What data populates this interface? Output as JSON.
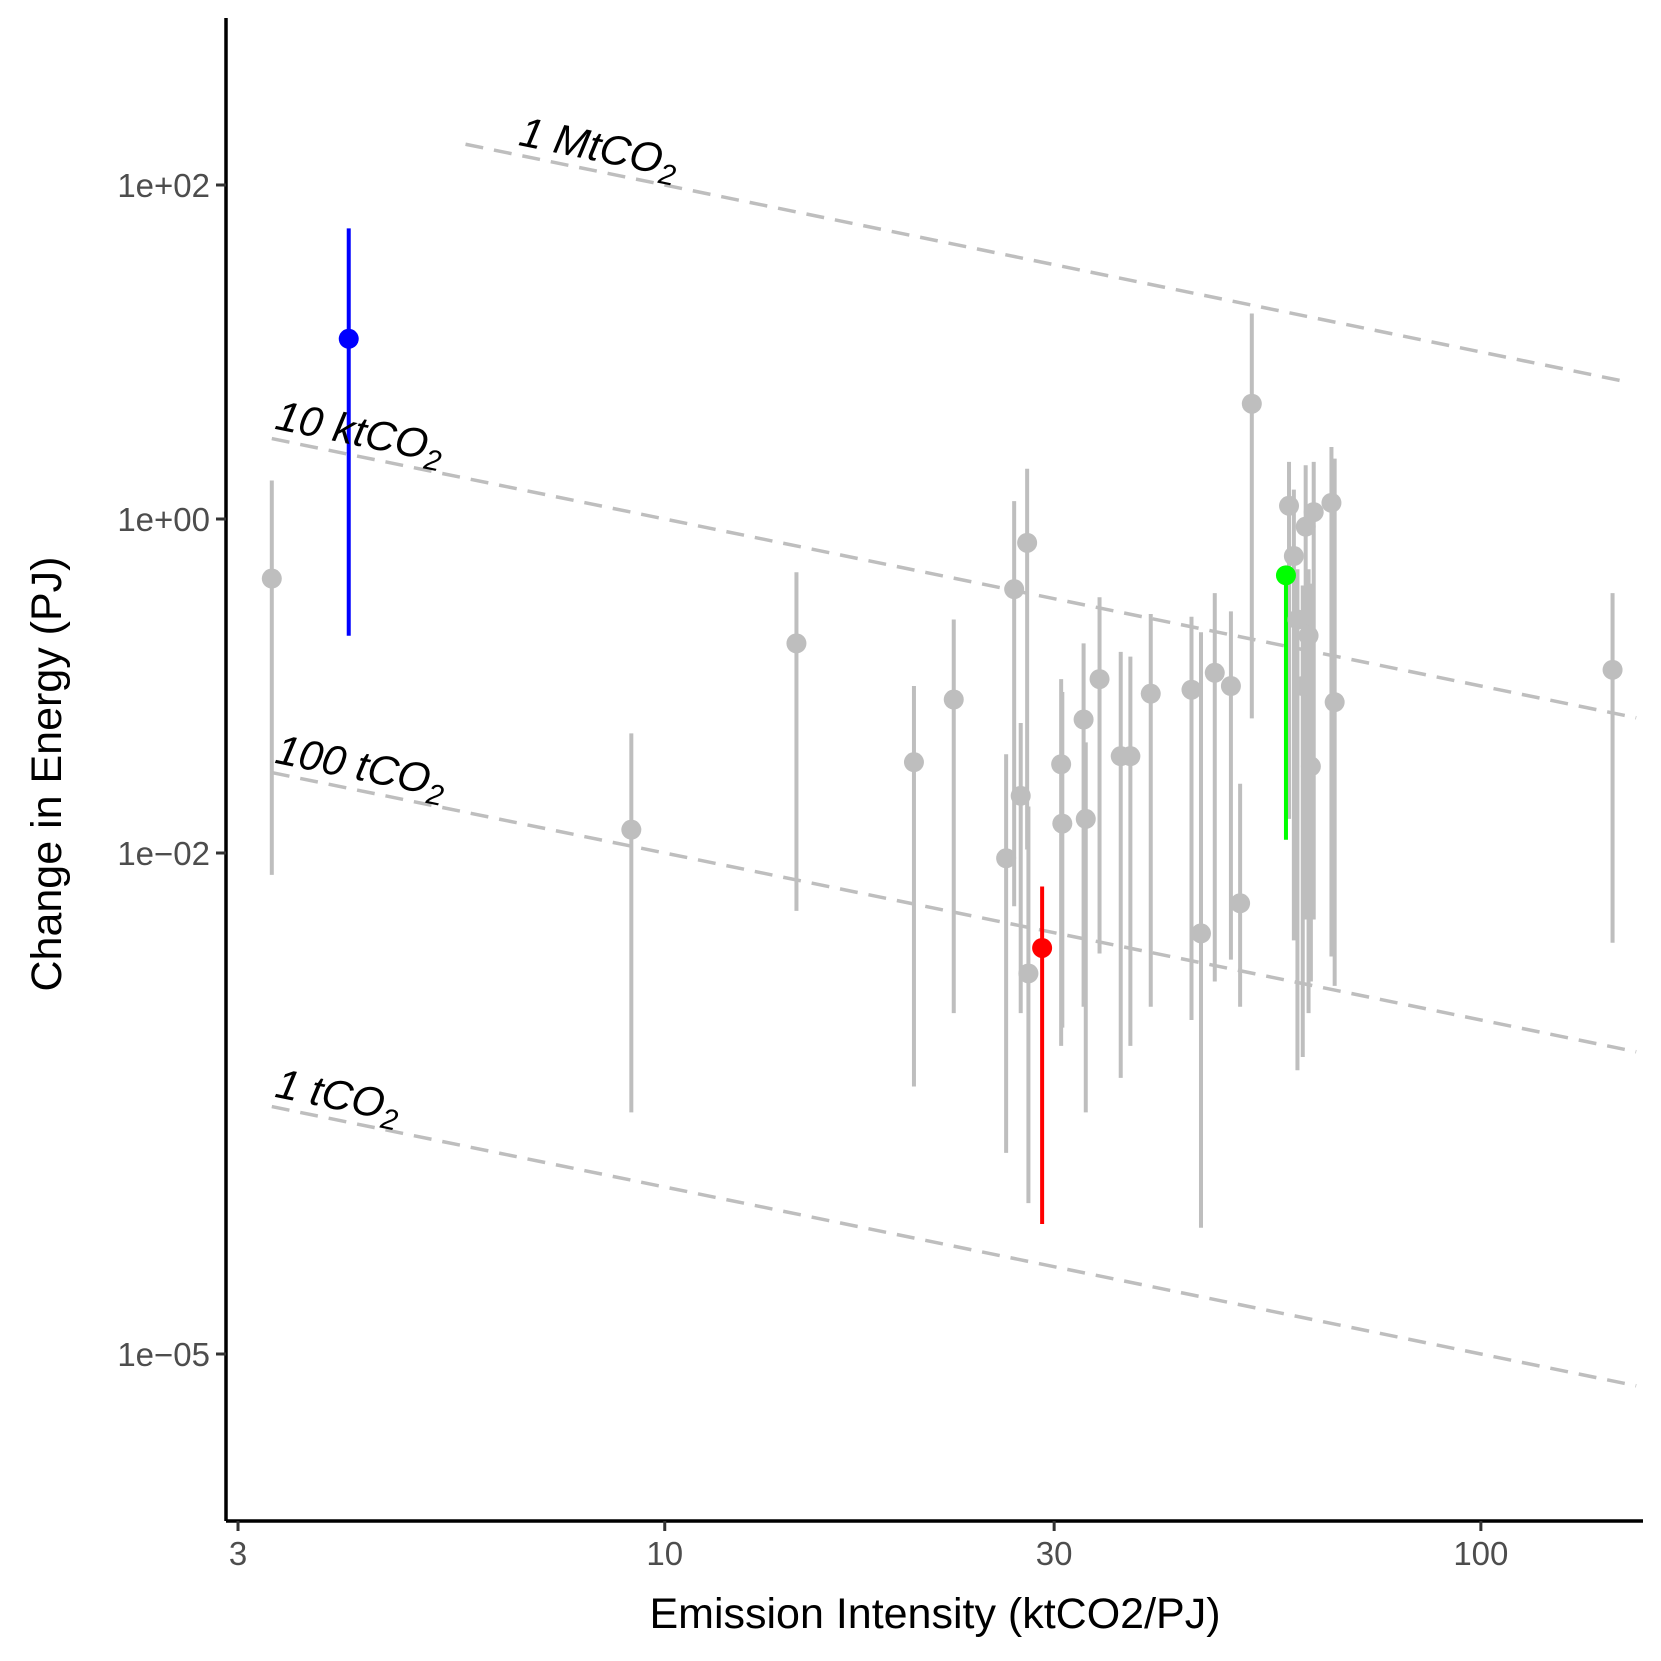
{
  "chart_data": {
    "type": "scatter",
    "title": "",
    "xlabel": "Emission Intensity (ktCO2/PJ)",
    "ylabel": "Change in Energy (PJ)",
    "x_scale": "log10",
    "y_scale": "log10",
    "xlim": [
      2.9,
      158
    ],
    "ylim": [
      1e-06,
      1000
    ],
    "x_ticks": [
      {
        "value": 3,
        "label": "3"
      },
      {
        "value": 10,
        "label": "10"
      },
      {
        "value": 30,
        "label": "30"
      },
      {
        "value": 100,
        "label": "100"
      }
    ],
    "y_ticks": [
      {
        "value": 100,
        "label": "1e+02"
      },
      {
        "value": 1,
        "label": "1e+00"
      },
      {
        "value": 0.01,
        "label": "1e−02"
      },
      {
        "value": 1e-05,
        "label": "1e−05"
      }
    ],
    "grid": false,
    "legend": "none",
    "colors": {
      "default": "#bebebe",
      "blue": "#0000ff",
      "red": "#ff0000",
      "green": "#00ff00",
      "axis": "#000000",
      "reference_line": "#bebebe"
    },
    "reference_lines": [
      {
        "label_main": "1 MtCO",
        "label_sub": "2",
        "emissions_ktCO2": 1000,
        "x_from": 5.7,
        "x_to": 152
      },
      {
        "label_main": "10 ktCO",
        "label_sub": "2",
        "emissions_ktCO2": 10,
        "x_from": 3.3,
        "x_to": 155
      },
      {
        "label_main": "100 tCO",
        "label_sub": "2",
        "emissions_ktCO2": 0.1,
        "x_from": 3.3,
        "x_to": 155
      },
      {
        "label_main": "1 tCO",
        "label_sub": "2",
        "emissions_ktCO2": 0.001,
        "x_from": 3.3,
        "x_to": 155
      }
    ],
    "points": [
      {
        "x": 3.3,
        "y": 0.44,
        "ymin": 0.0074,
        "ymax": 1.7
      },
      {
        "x": 4.1,
        "y": 12,
        "ymin": 0.2,
        "ymax": 55,
        "color": "blue"
      },
      {
        "x": 9.1,
        "y": 0.0138,
        "ymin": 0.00028,
        "ymax": 0.052
      },
      {
        "x": 14.5,
        "y": 0.18,
        "ymin": 0.0045,
        "ymax": 0.48
      },
      {
        "x": 20.2,
        "y": 0.035,
        "ymin": 0.0004,
        "ymax": 0.1
      },
      {
        "x": 22.6,
        "y": 0.083,
        "ymin": 0.0011,
        "ymax": 0.25
      },
      {
        "x": 26.2,
        "y": 0.0093,
        "ymin": 0.00016,
        "ymax": 0.039
      },
      {
        "x": 26.8,
        "y": 0.38,
        "ymin": 0.0048,
        "ymax": 1.28
      },
      {
        "x": 27.3,
        "y": 0.022,
        "ymin": 0.0011,
        "ymax": 0.06
      },
      {
        "x": 27.8,
        "y": 0.72,
        "ymin": 0.0105,
        "ymax": 2.0
      },
      {
        "x": 27.9,
        "y": 0.0019,
        "ymin": 8e-05,
        "ymax": 0.019
      },
      {
        "x": 29.0,
        "y": 0.0027,
        "ymin": 6e-05,
        "ymax": 0.0063,
        "color": "red"
      },
      {
        "x": 30.6,
        "y": 0.034,
        "ymin": 0.0007,
        "ymax": 0.11
      },
      {
        "x": 30.7,
        "y": 0.015,
        "ymin": 0.0009,
        "ymax": 0.092
      },
      {
        "x": 32.6,
        "y": 0.063,
        "ymin": 0.0012,
        "ymax": 0.18
      },
      {
        "x": 32.8,
        "y": 0.016,
        "ymin": 0.00028,
        "ymax": 0.046
      },
      {
        "x": 34.1,
        "y": 0.11,
        "ymin": 0.0025,
        "ymax": 0.34
      },
      {
        "x": 36.2,
        "y": 0.038,
        "ymin": 0.00045,
        "ymax": 0.16
      },
      {
        "x": 37.2,
        "y": 0.038,
        "ymin": 0.0007,
        "ymax": 0.15
      },
      {
        "x": 39.4,
        "y": 0.09,
        "ymin": 0.0012,
        "ymax": 0.27
      },
      {
        "x": 44.2,
        "y": 0.095,
        "ymin": 0.001,
        "ymax": 0.26
      },
      {
        "x": 45.4,
        "y": 0.0033,
        "ymin": 5.7e-05,
        "ymax": 0.21
      },
      {
        "x": 47.2,
        "y": 0.12,
        "ymin": 0.0017,
        "ymax": 0.36
      },
      {
        "x": 49.4,
        "y": 0.1,
        "ymin": 0.0023,
        "ymax": 0.28
      },
      {
        "x": 50.7,
        "y": 0.005,
        "ymin": 0.0012,
        "ymax": 0.026
      },
      {
        "x": 52.4,
        "y": 4.9,
        "ymin": 0.064,
        "ymax": 17
      },
      {
        "x": 57.7,
        "y": 0.46,
        "ymin": 0.012,
        "ymax": 0.5,
        "color": "green"
      },
      {
        "x": 58.2,
        "y": 1.2,
        "ymin": 0.016,
        "ymax": 2.2
      },
      {
        "x": 59.0,
        "y": 0.6,
        "ymin": 0.003,
        "ymax": 1.5
      },
      {
        "x": 59.6,
        "y": 0.25,
        "ymin": 0.0005,
        "ymax": 0.5
      },
      {
        "x": 60.5,
        "y": 0.1,
        "ymin": 0.0006,
        "ymax": 0.4
      },
      {
        "x": 61.0,
        "y": 0.9,
        "ymin": 0.004,
        "ymax": 2.1
      },
      {
        "x": 61.5,
        "y": 0.2,
        "ymin": 0.0011,
        "ymax": 0.5
      },
      {
        "x": 61.9,
        "y": 0.033,
        "ymin": 0.0017,
        "ymax": 0.41
      },
      {
        "x": 62.4,
        "y": 1.1,
        "ymin": 0.004,
        "ymax": 2.2
      },
      {
        "x": 65.6,
        "y": 1.25,
        "ymin": 0.0024,
        "ymax": 2.7
      },
      {
        "x": 66.2,
        "y": 0.08,
        "ymin": 0.0016,
        "ymax": 2.3
      },
      {
        "x": 145,
        "y": 0.125,
        "ymin": 0.0029,
        "ymax": 0.36
      }
    ]
  }
}
